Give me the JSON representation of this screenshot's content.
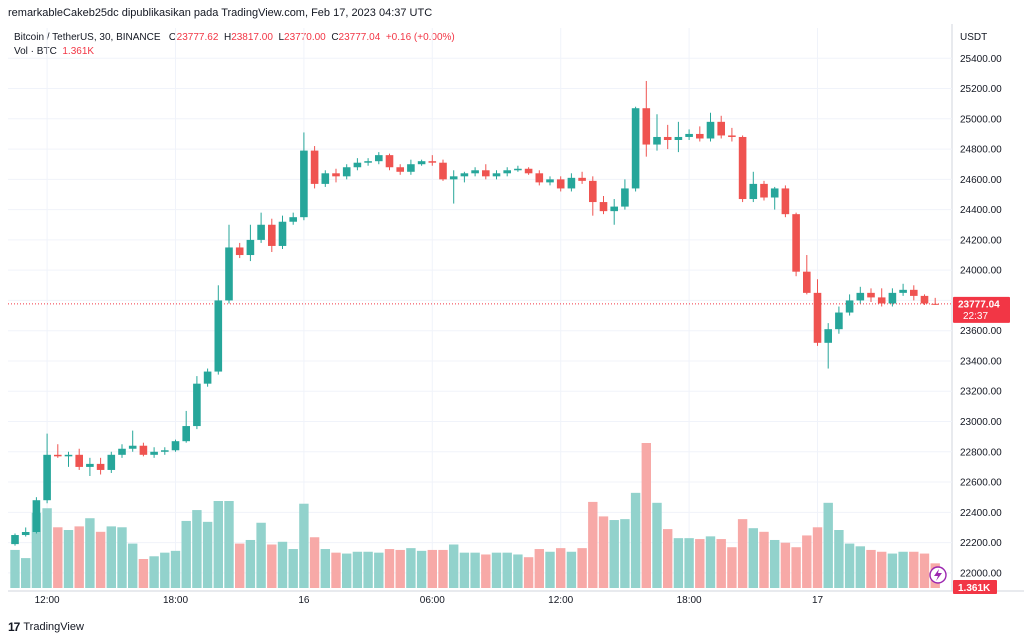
{
  "header": {
    "publisher_line": "remarkableCakeb25dc dipublikasikan pada TradingView.com, Feb 17, 2023 04:37 UTC"
  },
  "legend": {
    "symbol": "Bitcoin / TetherUS, 30, BINANCE",
    "open_label": "O",
    "open": "23777.62",
    "high_label": "H",
    "high": "23817.00",
    "low_label": "L",
    "low": "23770.00",
    "close_label": "C",
    "close": "23777.04",
    "change": "+0.16 (+0.00%)",
    "vol_label": "Vol · BTC",
    "vol_value": "1.361K"
  },
  "footer": {
    "brand": "TradingView",
    "logo_glyph": "17"
  },
  "colors": {
    "up": "#26a69a",
    "down": "#ef5350",
    "vol_up": "#92d2cc",
    "vol_down": "#f7a9a7",
    "last_price_bg": "#f23645",
    "grid": "#f0f3fa",
    "axis_text": "#131722",
    "flash_icon": "#9c27b0"
  },
  "chart_data": {
    "type": "candlestick",
    "title": "Bitcoin / TetherUS, 30, BINANCE",
    "currency_label": "USDT",
    "ylim": [
      21900,
      25600
    ],
    "y_ticks": [
      22000,
      22200,
      22400,
      22600,
      22800,
      23000,
      23200,
      23400,
      23600,
      23800,
      24000,
      24200,
      24400,
      24600,
      24800,
      25000,
      25200,
      25400
    ],
    "y_tick_labels": [
      "22000.00",
      "22200.00",
      "22400.00",
      "22600.00",
      "22800.00",
      "23000.00",
      "23200.00",
      "23400.00",
      "23600.00",
      "23800.00",
      "24000.00",
      "24200.00",
      "24400.00",
      "24600.00",
      "24800.00",
      "25000.00",
      "25200.00",
      "25400.00"
    ],
    "x_ticks": [
      {
        "index": 3,
        "label": "12:00"
      },
      {
        "index": 15,
        "label": "18:00"
      },
      {
        "index": 27,
        "label": "16"
      },
      {
        "index": 39,
        "label": "06:00"
      },
      {
        "index": 51,
        "label": "12:00"
      },
      {
        "index": 63,
        "label": "18:00"
      },
      {
        "index": 75,
        "label": "17"
      }
    ],
    "last_price": 23777.04,
    "last_price_label": "23777.04",
    "countdown": "22:37",
    "volume_label": "1.361K",
    "grid": true,
    "candles": [
      {
        "o": 22190,
        "h": 22260,
        "l": 22180,
        "c": 22250
      },
      {
        "o": 22250,
        "h": 22300,
        "l": 22240,
        "c": 22270
      },
      {
        "o": 22270,
        "h": 22500,
        "l": 22260,
        "c": 22480
      },
      {
        "o": 22480,
        "h": 22920,
        "l": 22460,
        "c": 22780
      },
      {
        "o": 22780,
        "h": 22850,
        "l": 22760,
        "c": 22770
      },
      {
        "o": 22770,
        "h": 22800,
        "l": 22700,
        "c": 22780
      },
      {
        "o": 22780,
        "h": 22820,
        "l": 22680,
        "c": 22700
      },
      {
        "o": 22700,
        "h": 22760,
        "l": 22640,
        "c": 22720
      },
      {
        "o": 22720,
        "h": 22760,
        "l": 22650,
        "c": 22680
      },
      {
        "o": 22680,
        "h": 22800,
        "l": 22660,
        "c": 22780
      },
      {
        "o": 22780,
        "h": 22850,
        "l": 22760,
        "c": 22820
      },
      {
        "o": 22820,
        "h": 22940,
        "l": 22800,
        "c": 22840
      },
      {
        "o": 22840,
        "h": 22860,
        "l": 22770,
        "c": 22780
      },
      {
        "o": 22780,
        "h": 22830,
        "l": 22760,
        "c": 22800
      },
      {
        "o": 22800,
        "h": 22830,
        "l": 22780,
        "c": 22810
      },
      {
        "o": 22810,
        "h": 22880,
        "l": 22800,
        "c": 22870
      },
      {
        "o": 22870,
        "h": 23070,
        "l": 22860,
        "c": 22970
      },
      {
        "o": 22970,
        "h": 23300,
        "l": 22950,
        "c": 23250
      },
      {
        "o": 23250,
        "h": 23350,
        "l": 23230,
        "c": 23330
      },
      {
        "o": 23330,
        "h": 23900,
        "l": 23310,
        "c": 23800
      },
      {
        "o": 23800,
        "h": 24300,
        "l": 23780,
        "c": 24150
      },
      {
        "o": 24150,
        "h": 24180,
        "l": 24080,
        "c": 24100
      },
      {
        "o": 24100,
        "h": 24300,
        "l": 24060,
        "c": 24200
      },
      {
        "o": 24200,
        "h": 24380,
        "l": 24180,
        "c": 24300
      },
      {
        "o": 24300,
        "h": 24340,
        "l": 24120,
        "c": 24160
      },
      {
        "o": 24160,
        "h": 24360,
        "l": 24140,
        "c": 24320
      },
      {
        "o": 24320,
        "h": 24380,
        "l": 24300,
        "c": 24350
      },
      {
        "o": 24350,
        "h": 24910,
        "l": 24330,
        "c": 24790
      },
      {
        "o": 24790,
        "h": 24820,
        "l": 24540,
        "c": 24570
      },
      {
        "o": 24570,
        "h": 24660,
        "l": 24550,
        "c": 24640
      },
      {
        "o": 24640,
        "h": 24670,
        "l": 24580,
        "c": 24620
      },
      {
        "o": 24620,
        "h": 24700,
        "l": 24600,
        "c": 24680
      },
      {
        "o": 24680,
        "h": 24740,
        "l": 24660,
        "c": 24710
      },
      {
        "o": 24710,
        "h": 24740,
        "l": 24690,
        "c": 24720
      },
      {
        "o": 24720,
        "h": 24780,
        "l": 24700,
        "c": 24760
      },
      {
        "o": 24760,
        "h": 24770,
        "l": 24660,
        "c": 24680
      },
      {
        "o": 24680,
        "h": 24700,
        "l": 24630,
        "c": 24650
      },
      {
        "o": 24650,
        "h": 24730,
        "l": 24630,
        "c": 24700
      },
      {
        "o": 24700,
        "h": 24730,
        "l": 24690,
        "c": 24720
      },
      {
        "o": 24720,
        "h": 24760,
        "l": 24690,
        "c": 24710
      },
      {
        "o": 24710,
        "h": 24730,
        "l": 24590,
        "c": 24600
      },
      {
        "o": 24600,
        "h": 24660,
        "l": 24440,
        "c": 24620
      },
      {
        "o": 24620,
        "h": 24650,
        "l": 24580,
        "c": 24640
      },
      {
        "o": 24640,
        "h": 24680,
        "l": 24620,
        "c": 24660
      },
      {
        "o": 24660,
        "h": 24700,
        "l": 24600,
        "c": 24620
      },
      {
        "o": 24620,
        "h": 24660,
        "l": 24600,
        "c": 24640
      },
      {
        "o": 24640,
        "h": 24680,
        "l": 24620,
        "c": 24660
      },
      {
        "o": 24660,
        "h": 24690,
        "l": 24650,
        "c": 24670
      },
      {
        "o": 24670,
        "h": 24680,
        "l": 24630,
        "c": 24640
      },
      {
        "o": 24640,
        "h": 24660,
        "l": 24560,
        "c": 24580
      },
      {
        "o": 24580,
        "h": 24620,
        "l": 24560,
        "c": 24600
      },
      {
        "o": 24600,
        "h": 24620,
        "l": 24520,
        "c": 24540
      },
      {
        "o": 24540,
        "h": 24640,
        "l": 24520,
        "c": 24610
      },
      {
        "o": 24610,
        "h": 24650,
        "l": 24570,
        "c": 24590
      },
      {
        "o": 24590,
        "h": 24620,
        "l": 24360,
        "c": 24450
      },
      {
        "o": 24450,
        "h": 24490,
        "l": 24370,
        "c": 24390
      },
      {
        "o": 24390,
        "h": 24470,
        "l": 24300,
        "c": 24420
      },
      {
        "o": 24420,
        "h": 24600,
        "l": 24400,
        "c": 24540
      },
      {
        "o": 24540,
        "h": 25080,
        "l": 24520,
        "c": 25070
      },
      {
        "o": 25070,
        "h": 25250,
        "l": 24750,
        "c": 24830
      },
      {
        "o": 24830,
        "h": 25030,
        "l": 24790,
        "c": 24880
      },
      {
        "o": 24880,
        "h": 24960,
        "l": 24800,
        "c": 24860
      },
      {
        "o": 24860,
        "h": 24980,
        "l": 24780,
        "c": 24880
      },
      {
        "o": 24880,
        "h": 24930,
        "l": 24860,
        "c": 24900
      },
      {
        "o": 24900,
        "h": 24950,
        "l": 24850,
        "c": 24870
      },
      {
        "o": 24870,
        "h": 25040,
        "l": 24850,
        "c": 24980
      },
      {
        "o": 24980,
        "h": 25020,
        "l": 24870,
        "c": 24890
      },
      {
        "o": 24890,
        "h": 24940,
        "l": 24850,
        "c": 24880
      },
      {
        "o": 24880,
        "h": 24890,
        "l": 24450,
        "c": 24470
      },
      {
        "o": 24470,
        "h": 24650,
        "l": 24450,
        "c": 24570
      },
      {
        "o": 24570,
        "h": 24590,
        "l": 24460,
        "c": 24480
      },
      {
        "o": 24480,
        "h": 24550,
        "l": 24400,
        "c": 24540
      },
      {
        "o": 24540,
        "h": 24560,
        "l": 24350,
        "c": 24370
      },
      {
        "o": 24370,
        "h": 24380,
        "l": 23960,
        "c": 23990
      },
      {
        "o": 23990,
        "h": 24100,
        "l": 23840,
        "c": 23850
      },
      {
        "o": 23850,
        "h": 23940,
        "l": 23500,
        "c": 23520
      },
      {
        "o": 23520,
        "h": 23650,
        "l": 23350,
        "c": 23610
      },
      {
        "o": 23610,
        "h": 23760,
        "l": 23580,
        "c": 23720
      },
      {
        "o": 23720,
        "h": 23840,
        "l": 23700,
        "c": 23800
      },
      {
        "o": 23800,
        "h": 23890,
        "l": 23780,
        "c": 23850
      },
      {
        "o": 23850,
        "h": 23880,
        "l": 23790,
        "c": 23820
      },
      {
        "o": 23820,
        "h": 23880,
        "l": 23760,
        "c": 23780
      },
      {
        "o": 23780,
        "h": 23880,
        "l": 23760,
        "c": 23850
      },
      {
        "o": 23850,
        "h": 23910,
        "l": 23830,
        "c": 23870
      },
      {
        "o": 23870,
        "h": 23900,
        "l": 23800,
        "c": 23830
      },
      {
        "o": 23830,
        "h": 23840,
        "l": 23770,
        "c": 23780
      },
      {
        "o": 23777.62,
        "h": 23817,
        "l": 23770,
        "c": 23777.04
      }
    ],
    "volume_max": 8000,
    "volumes": [
      2100,
      1650,
      4150,
      4400,
      3350,
      3200,
      3400,
      3850,
      3100,
      3400,
      3350,
      2450,
      1600,
      1750,
      1950,
      2050,
      3700,
      4300,
      3650,
      4800,
      4800,
      2450,
      2650,
      3600,
      2400,
      2550,
      2150,
      4650,
      2800,
      2150,
      1950,
      1900,
      2000,
      2000,
      1950,
      2150,
      2100,
      2200,
      2050,
      2100,
      2100,
      2400,
      1950,
      1950,
      1850,
      1950,
      1950,
      1850,
      1700,
      2150,
      2000,
      2200,
      2000,
      2200,
      4750,
      3950,
      3750,
      3800,
      5250,
      8000,
      4700,
      3250,
      2750,
      2750,
      2700,
      2850,
      2700,
      2250,
      3800,
      3300,
      3100,
      2650,
      2500,
      2250,
      2900,
      3350,
      4700,
      3200,
      2450,
      2300,
      2100,
      2000,
      1900,
      2000,
      2000,
      1900,
      1361
    ],
    "volume_ticks": [],
    "x_labels_only": [
      "12:00",
      "18:00",
      "16",
      "06:00",
      "12:00",
      "18:00",
      "17"
    ]
  }
}
